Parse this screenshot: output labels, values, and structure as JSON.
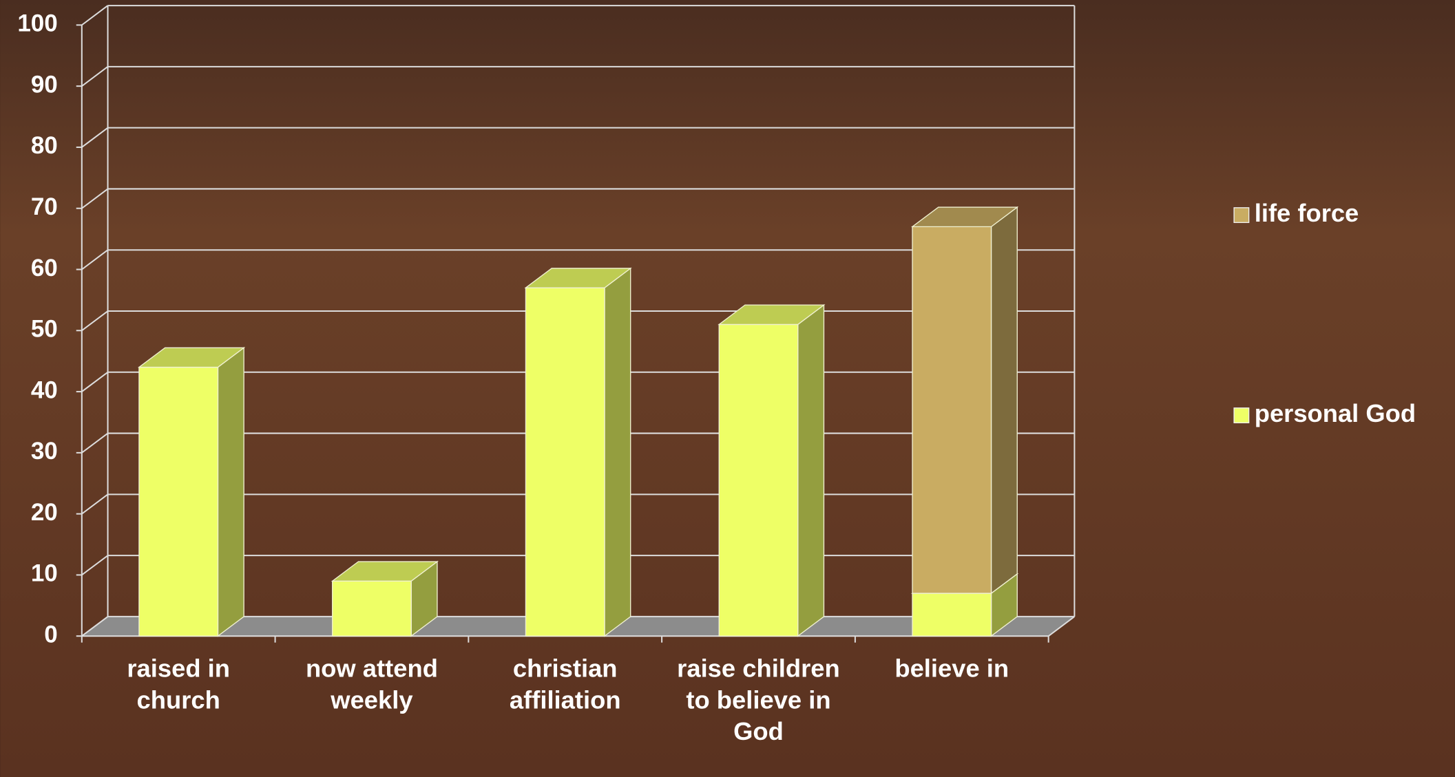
{
  "chart_data": {
    "type": "bar3d_stacked",
    "categories": [
      "raised in church",
      "now attend weekly",
      "christian affiliation",
      "raise children to believe in God",
      "believe in"
    ],
    "series": [
      {
        "name": "personal God",
        "color": "#eeff66",
        "values": [
          44,
          9,
          57,
          51,
          7
        ]
      },
      {
        "name": "life force",
        "color": "#c9ac62",
        "values": [
          null,
          null,
          null,
          null,
          60
        ]
      }
    ],
    "ylim": [
      0,
      100
    ],
    "yticks": [
      0,
      10,
      20,
      30,
      40,
      50,
      60,
      70,
      80,
      90,
      100
    ],
    "grid": true,
    "legend": "right"
  }
}
